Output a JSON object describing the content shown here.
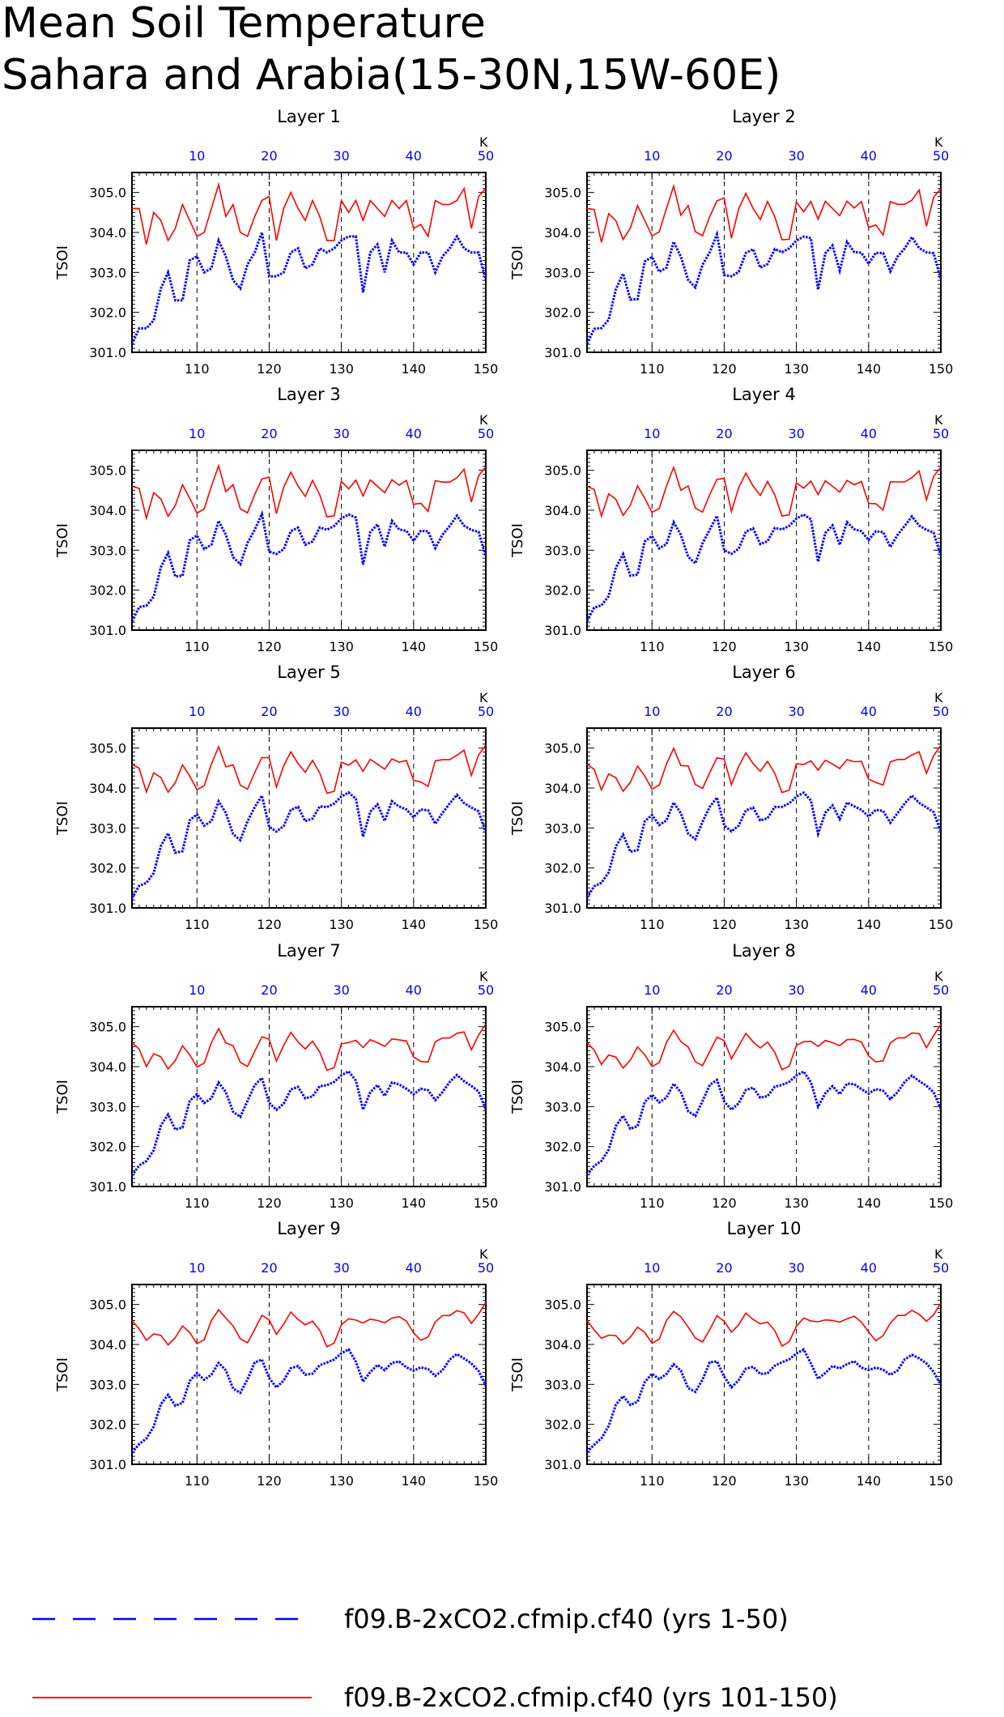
{
  "title": [
    "Mean Soil Temperature",
    "Sahara and Arabia(15-30N,15W-60E)"
  ],
  "chart_data": {
    "type": "line",
    "panel_titles": [
      "Layer 1",
      "Layer 2",
      "Layer 3",
      "Layer 4",
      "Layer 5",
      "Layer 6",
      "Layer 7",
      "Layer 8",
      "Layer 9",
      "Layer 10"
    ],
    "ylabel": "TSOI",
    "ylim": [
      301.0,
      305.5
    ],
    "yticks": [
      "301.0",
      "302.0",
      "303.0",
      "304.0",
      "305.0"
    ],
    "xlim_bottom": [
      101,
      150
    ],
    "xticks_bottom": [
      "110",
      "120",
      "130",
      "140",
      "150"
    ],
    "xlim_top": [
      1,
      50
    ],
    "xticks_top": [
      "10",
      "20",
      "30",
      "40",
      "50"
    ],
    "top_axis_label": "K",
    "grid": "dashed vertical lines at 110, 120, 130, 140",
    "series": [
      {
        "name": "f09.B-2xCO2.cfmip.cf40 (yrs 1-50)",
        "color": "#0000ff",
        "style": "dashed",
        "axis": "top",
        "values": [
          301.2,
          301.6,
          301.6,
          301.8,
          302.6,
          303.0,
          302.3,
          302.3,
          303.3,
          303.4,
          303.0,
          303.1,
          303.8,
          303.4,
          302.8,
          302.6,
          303.2,
          303.5,
          304.0,
          302.9,
          302.9,
          303.0,
          303.5,
          303.6,
          303.1,
          303.2,
          303.6,
          303.5,
          303.6,
          303.8,
          303.9,
          303.9,
          302.5,
          303.5,
          303.7,
          303.0,
          303.8,
          303.5,
          303.5,
          303.2,
          303.5,
          303.5,
          303.0,
          303.4,
          303.6,
          303.9,
          303.6,
          303.5,
          303.5,
          302.8
        ]
      },
      {
        "name": "f09.B-2xCO2.cfmip.cf40 (yrs 101-150)",
        "color": "#ff0000",
        "style": "solid",
        "axis": "bottom",
        "values": [
          304.6,
          304.6,
          303.7,
          304.5,
          304.3,
          303.8,
          304.1,
          304.7,
          304.3,
          303.9,
          304.0,
          304.6,
          305.2,
          304.4,
          304.7,
          304.0,
          303.9,
          304.4,
          304.8,
          304.9,
          303.8,
          304.6,
          305.0,
          304.6,
          304.3,
          304.8,
          304.4,
          303.8,
          303.8,
          304.8,
          304.5,
          304.8,
          304.3,
          304.8,
          304.6,
          304.4,
          304.8,
          304.6,
          304.8,
          304.1,
          304.2,
          303.9,
          304.8,
          304.7,
          304.7,
          304.8,
          305.1,
          304.1,
          304.9,
          305.1
        ]
      }
    ],
    "legend": {
      "position": "bottom"
    }
  }
}
